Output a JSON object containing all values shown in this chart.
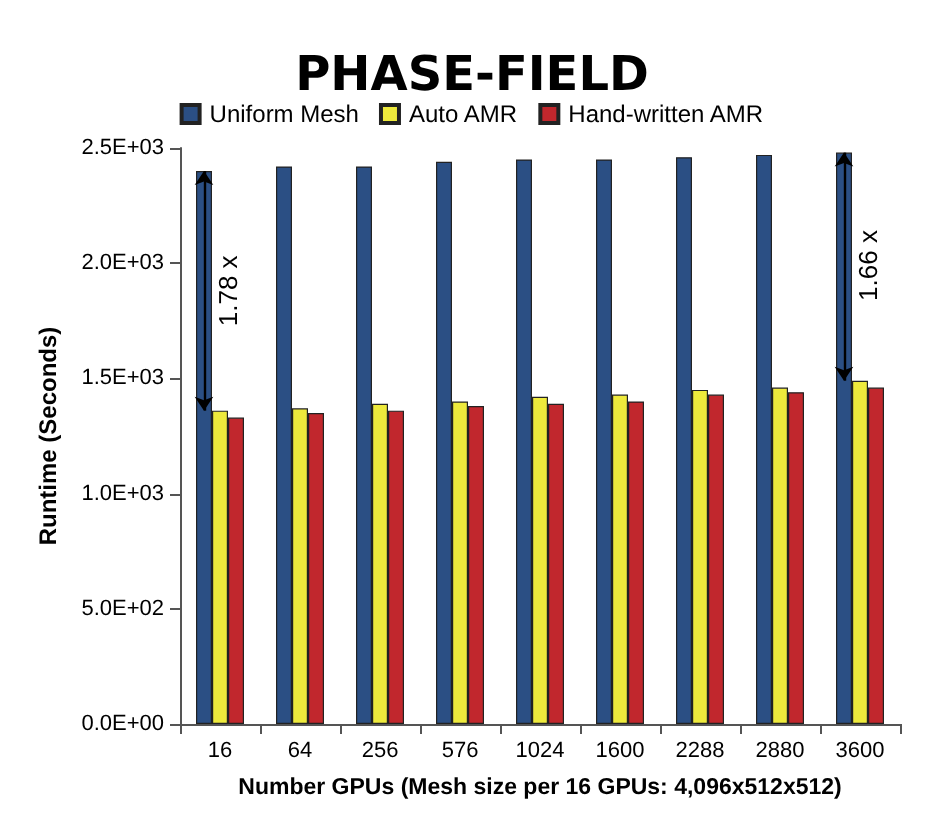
{
  "chart_data": {
    "type": "bar",
    "title": "PHASE-FIELD",
    "xlabel": "Number GPUs (Mesh size per 16 GPUs: 4,096x512x512)",
    "ylabel": "Runtime (Seconds)",
    "categories": [
      "16",
      "64",
      "256",
      "576",
      "1024",
      "1600",
      "2288",
      "2880",
      "3600"
    ],
    "series": [
      {
        "name": "Uniform Mesh",
        "color": "#2b4f84",
        "values": [
          2400,
          2420,
          2420,
          2440,
          2450,
          2450,
          2460,
          2470,
          2480
        ]
      },
      {
        "name": "Auto AMR",
        "color": "#eeea3c",
        "values": [
          1360,
          1370,
          1390,
          1400,
          1420,
          1430,
          1450,
          1460,
          1490
        ]
      },
      {
        "name": "Hand-written AMR",
        "color": "#c1272d",
        "values": [
          1330,
          1350,
          1360,
          1380,
          1390,
          1400,
          1430,
          1440,
          1460
        ]
      }
    ],
    "ylim": [
      0,
      2500
    ],
    "yticks": [
      {
        "value": 0,
        "label": "0.0E+00"
      },
      {
        "value": 500,
        "label": "5.0E+02"
      },
      {
        "value": 1000,
        "label": "1.0E+03"
      },
      {
        "value": 1500,
        "label": "1.5E+03"
      },
      {
        "value": 2000,
        "label": "2.0E+03"
      },
      {
        "value": 2500,
        "label": "2.5E+03"
      }
    ],
    "annotations": [
      {
        "text": "1.78 x",
        "x": "16",
        "y": 1880
      },
      {
        "text": "1.66 x",
        "x": "3600",
        "y": 1990
      }
    ],
    "grid": false,
    "legend": "top"
  }
}
